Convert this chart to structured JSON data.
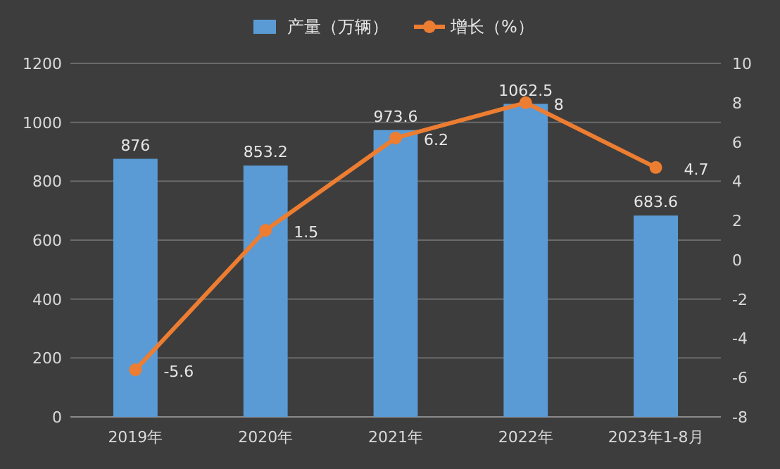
{
  "chart_data": {
    "type": "bar",
    "categories": [
      "2019年",
      "2020年",
      "2021年",
      "2022年",
      "2023年1-8月"
    ],
    "series": [
      {
        "name": "产量（万辆）",
        "color": "#5b9bd5",
        "values": [
          876,
          853.2,
          973.6,
          1062.5,
          683.6
        ]
      },
      {
        "name": "增长（%）",
        "type": "line",
        "axis": "y2",
        "color": "#ed7d31",
        "values": [
          -5.6,
          1.5,
          6.2,
          8,
          4.7
        ]
      }
    ],
    "ylim": [
      0,
      1200
    ],
    "yticks": [
      0,
      200,
      400,
      600,
      800,
      1000,
      1200
    ],
    "y2lim": [
      -8,
      10
    ],
    "y2ticks": [
      -8,
      -6,
      -4,
      -2,
      0,
      2,
      4,
      6,
      8,
      10
    ],
    "grid": "y",
    "legend": "top",
    "data_labels": true,
    "marker": "circle"
  }
}
